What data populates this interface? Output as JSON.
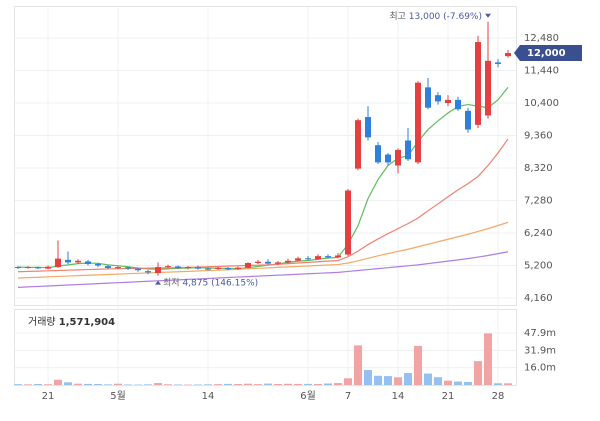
{
  "chart_data": {
    "type": "candlestick",
    "categories": [
      null,
      null,
      null,
      "21",
      null,
      null,
      null,
      null,
      null,
      null,
      "5월",
      null,
      null,
      null,
      null,
      null,
      null,
      null,
      null,
      "14",
      null,
      null,
      null,
      null,
      null,
      null,
      null,
      null,
      null,
      "6월",
      null,
      null,
      null,
      "7",
      null,
      null,
      null,
      null,
      "14",
      null,
      null,
      null,
      null,
      "21",
      null,
      null,
      null,
      null,
      "28",
      null
    ],
    "open": [
      5150,
      5120,
      5140,
      5100,
      5150,
      5380,
      5300,
      5330,
      5250,
      5180,
      5120,
      5140,
      5100,
      5020,
      4960,
      5150,
      5170,
      5120,
      5150,
      5100,
      5090,
      5120,
      5090,
      5130,
      5280,
      5320,
      5260,
      5300,
      5360,
      5430,
      5400,
      5500,
      5460,
      5550,
      8300,
      9950,
      9050,
      8750,
      8400,
      9200,
      8500,
      10900,
      10650,
      10400,
      10500,
      10150,
      9700,
      10000,
      11700,
      11900
    ],
    "high": [
      5180,
      5180,
      5170,
      5200,
      6000,
      5650,
      5400,
      5380,
      5280,
      5220,
      5180,
      5170,
      5130,
      5060,
      5300,
      5230,
      5200,
      5180,
      5200,
      5140,
      5160,
      5150,
      5170,
      5300,
      5380,
      5400,
      5340,
      5420,
      5480,
      5500,
      5560,
      5560,
      5600,
      7650,
      9900,
      10300,
      9150,
      8800,
      8950,
      9600,
      11100,
      11200,
      10750,
      10650,
      10600,
      10250,
      12550,
      13000,
      11800,
      12100
    ],
    "low": [
      5090,
      5100,
      5090,
      5080,
      5120,
      5250,
      5250,
      5200,
      5150,
      5080,
      5080,
      5060,
      5000,
      4920,
      4875,
      5120,
      5090,
      5080,
      5070,
      5040,
      5060,
      5050,
      5060,
      5110,
      5250,
      5230,
      5220,
      5270,
      5330,
      5370,
      5380,
      5420,
      5430,
      5500,
      8250,
      9200,
      8450,
      8400,
      8150,
      8550,
      8450,
      10200,
      10350,
      10300,
      10150,
      9450,
      9600,
      9900,
      11550,
      11850
    ],
    "close": [
      5120,
      5150,
      5110,
      5160,
      5420,
      5300,
      5350,
      5250,
      5200,
      5120,
      5150,
      5100,
      5050,
      4980,
      5150,
      5180,
      5120,
      5150,
      5100,
      5080,
      5130,
      5080,
      5130,
      5280,
      5320,
      5260,
      5300,
      5350,
      5430,
      5400,
      5500,
      5460,
      5520,
      7600,
      9850,
      9300,
      8500,
      8500,
      8900,
      8600,
      11050,
      10250,
      10450,
      10500,
      10200,
      9550,
      12350,
      11750,
      11650,
      12000
    ],
    "up_color": "#e5403f",
    "down_color": "#2f7fdc",
    "moving_averages": [
      {
        "color": "#5cbf5a",
        "values": [
          5150,
          5140,
          5140,
          5130,
          5180,
          5220,
          5260,
          5280,
          5270,
          5220,
          5190,
          5160,
          5120,
          5090,
          5080,
          5090,
          5110,
          5120,
          5130,
          5120,
          5110,
          5110,
          5100,
          5130,
          5170,
          5210,
          5250,
          5300,
          5340,
          5360,
          5400,
          5440,
          5460,
          5880,
          6470,
          7340,
          7950,
          8400,
          8640,
          8710,
          9170,
          9550,
          9830,
          10080,
          10290,
          10350,
          10300,
          10250,
          10500,
          10900
        ]
      },
      {
        "color": "#f08070",
        "values": [
          5000,
          5010,
          5020,
          5030,
          5040,
          5050,
          5060,
          5070,
          5080,
          5090,
          5100,
          5105,
          5110,
          5115,
          5120,
          5125,
          5130,
          5140,
          5150,
          5160,
          5170,
          5180,
          5190,
          5200,
          5210,
          5220,
          5240,
          5260,
          5280,
          5300,
          5320,
          5340,
          5360,
          5480,
          5660,
          5870,
          6050,
          6220,
          6380,
          6540,
          6720,
          6950,
          7170,
          7400,
          7620,
          7820,
          8050,
          8400,
          8800,
          9250
        ]
      },
      {
        "color": "#f5a868",
        "values": [
          4800,
          4812,
          4825,
          4838,
          4850,
          4862,
          4875,
          4888,
          4900,
          4912,
          4925,
          4938,
          4950,
          4962,
          4975,
          4988,
          5000,
          5012,
          5025,
          5038,
          5050,
          5065,
          5080,
          5095,
          5110,
          5125,
          5140,
          5155,
          5170,
          5185,
          5200,
          5215,
          5230,
          5280,
          5350,
          5430,
          5510,
          5580,
          5650,
          5720,
          5800,
          5880,
          5960,
          6040,
          6120,
          6200,
          6290,
          6380,
          6480,
          6580
        ]
      },
      {
        "color": "#b07ee0",
        "values": [
          4500,
          4515,
          4530,
          4545,
          4560,
          4575,
          4590,
          4605,
          4620,
          4635,
          4650,
          4665,
          4680,
          4695,
          4710,
          4725,
          4740,
          4755,
          4770,
          4785,
          4800,
          4815,
          4830,
          4845,
          4860,
          4875,
          4890,
          4905,
          4920,
          4935,
          4950,
          4965,
          4980,
          5010,
          5040,
          5070,
          5100,
          5130,
          5160,
          5190,
          5220,
          5260,
          5300,
          5340,
          5380,
          5420,
          5470,
          5520,
          5580,
          5640
        ]
      }
    ],
    "ylim": [
      3936,
      13376
    ],
    "yticks": [
      {
        "value": 12480,
        "label": "12,480"
      },
      {
        "value": 11440,
        "label": "11,440"
      },
      {
        "value": 10400,
        "label": "10,400"
      },
      {
        "value": 9360,
        "label": "9,360"
      },
      {
        "value": 8320,
        "label": "8,320"
      },
      {
        "value": 7280,
        "label": "7,280"
      },
      {
        "value": 6240,
        "label": "6,240"
      },
      {
        "value": 5200,
        "label": "5,200"
      },
      {
        "value": 4160,
        "label": "4,160"
      }
    ],
    "grid": true,
    "last_price_label": "12,000",
    "high_label": "최고",
    "high_text": "13,000 (-7.69%)",
    "low_label": "최저",
    "low_text": "4,875 (146.15%)",
    "volume": {
      "title": "거래량",
      "text": "1,571,904",
      "up_color": "#f2a3a3",
      "down_color": "#95c1f0",
      "values": [
        0.8,
        0.6,
        0.9,
        0.7,
        4.8,
        2.5,
        1.2,
        1.0,
        0.9,
        0.6,
        1.2,
        0.5,
        0.4,
        0.6,
        1.8,
        0.7,
        0.5,
        0.4,
        0.5,
        0.6,
        0.8,
        1.0,
        0.9,
        1.2,
        0.8,
        1.3,
        0.9,
        1.1,
        1.0,
        1.0,
        0.9,
        1.4,
        1.8,
        6.2,
        36.5,
        13.8,
        8.5,
        8.2,
        7.1,
        11.0,
        36.0,
        10.5,
        7.2,
        4.0,
        3.2,
        2.8,
        22.0,
        47.5,
        1.6,
        1.57
      ],
      "ylim": [
        0,
        69.1
      ],
      "yticks": [
        {
          "value": 47.9,
          "label": "47.9m"
        },
        {
          "value": 31.9,
          "label": "31.9m"
        },
        {
          "value": 16.0,
          "label": "16.0m"
        }
      ]
    }
  }
}
